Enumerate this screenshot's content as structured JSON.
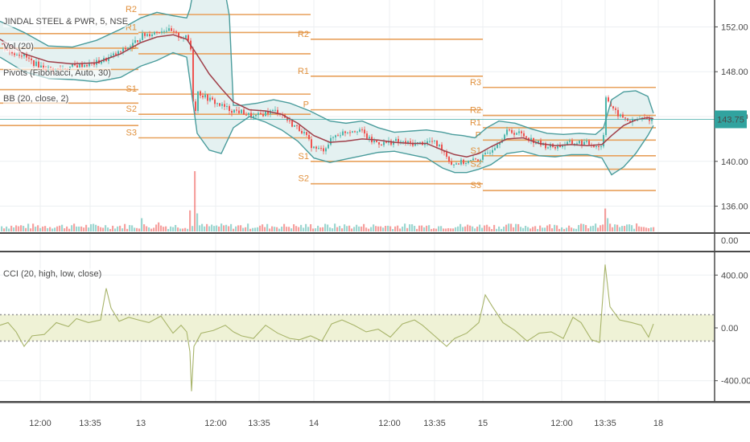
{
  "legend": {
    "symbol": "JINDAL STEEL & PWR, 5, NSE",
    "volume": "Vol (20)",
    "pivots": "Pivots (Fibonacci, Auto, 30)",
    "bb": "BB (20, close, 2)",
    "cci": "CCI (20, high, low, close)"
  },
  "colors": {
    "pivot": "#e8a15c",
    "pivot_text": "#e0903c",
    "bb_band": "#4a9c9c",
    "bb_fill": "#e4f1f1",
    "basis": "#a0404a",
    "candle_up": "#4db6ac",
    "candle_down": "#ef5350",
    "cci_line": "#a8b46a",
    "cci_band_fill": "#eff2d6",
    "price_badge": "#31a39f",
    "grid": "#eceff2",
    "axis_line": "#4a4a4a"
  },
  "chart_data": [
    {
      "type": "candlestick",
      "title": "JINDAL STEEL & PWR, 5, NSE",
      "ylim": [
        133.6,
        154.4
      ],
      "y_ticks": [
        "152.00",
        "148.00",
        "144.00",
        "140.00",
        "136.00"
      ],
      "current_price": "143.75",
      "x_ticks": [
        "12:00",
        "13:35",
        "13",
        "12:00",
        "13:35",
        "14",
        "12:00",
        "13:35",
        "15",
        "12:00",
        "13:35",
        "18"
      ],
      "price_series": [
        [
          0,
          150.5
        ],
        [
          12,
          149.7
        ],
        [
          25,
          149.6
        ],
        [
          40,
          148.8
        ],
        [
          55,
          148.3
        ],
        [
          70,
          148.2
        ],
        [
          85,
          148.4
        ],
        [
          100,
          148.6
        ],
        [
          115,
          148.7
        ],
        [
          130,
          149.1
        ],
        [
          150,
          149.8
        ],
        [
          165,
          150.5
        ],
        [
          175,
          151.2
        ],
        [
          190,
          151.5
        ],
        [
          205,
          151.8
        ],
        [
          220,
          151.2
        ],
        [
          232,
          151.0
        ],
        [
          238,
          149.5
        ],
        [
          240,
          141.5
        ],
        [
          243,
          146.3
        ],
        [
          255,
          145.7
        ],
        [
          270,
          145.1
        ],
        [
          285,
          144.6
        ],
        [
          300,
          144.4
        ],
        [
          315,
          143.9
        ],
        [
          330,
          144.4
        ],
        [
          345,
          144.5
        ],
        [
          360,
          143.4
        ],
        [
          375,
          142.7
        ],
        [
          388,
          141.2
        ],
        [
          400,
          141.0
        ],
        [
          415,
          142.3
        ],
        [
          430,
          142.7
        ],
        [
          445,
          142.9
        ],
        [
          460,
          141.8
        ],
        [
          475,
          141.6
        ],
        [
          490,
          141.8
        ],
        [
          505,
          141.6
        ],
        [
          520,
          141.6
        ],
        [
          535,
          141.8
        ],
        [
          548,
          141.2
        ],
        [
          560,
          139.8
        ],
        [
          572,
          139.9
        ],
        [
          585,
          140.0
        ],
        [
          600,
          140.4
        ],
        [
          615,
          141.5
        ],
        [
          630,
          142.7
        ],
        [
          645,
          142.5
        ],
        [
          660,
          141.9
        ],
        [
          675,
          141.4
        ],
        [
          690,
          141.3
        ],
        [
          705,
          141.6
        ],
        [
          720,
          141.7
        ],
        [
          735,
          141.5
        ],
        [
          748,
          141.3
        ],
        [
          752,
          145.9
        ],
        [
          760,
          144.6
        ],
        [
          770,
          144.0
        ],
        [
          785,
          143.5
        ],
        [
          795,
          143.8
        ],
        [
          805,
          143.8
        ],
        [
          812,
          143.75
        ]
      ],
      "bollinger_bands": {
        "upper": [
          [
            0,
            152.5
          ],
          [
            30,
            151.5
          ],
          [
            60,
            150.3
          ],
          [
            90,
            150.2
          ],
          [
            120,
            150.8
          ],
          [
            150,
            151.8
          ],
          [
            175,
            152.8
          ],
          [
            195,
            153.3
          ],
          [
            215,
            153.0
          ],
          [
            232,
            152.8
          ],
          [
            236,
            153.6
          ],
          [
            245,
            157.0
          ],
          [
            260,
            158.0
          ],
          [
            275,
            157.0
          ],
          [
            285,
            153.0
          ],
          [
            290,
            145.0
          ],
          [
            300,
            145.0
          ],
          [
            320,
            145.2
          ],
          [
            340,
            145.5
          ],
          [
            360,
            145.2
          ],
          [
            385,
            144.5
          ],
          [
            410,
            143.6
          ],
          [
            430,
            143.4
          ],
          [
            450,
            143.6
          ],
          [
            470,
            143.0
          ],
          [
            490,
            142.6
          ],
          [
            510,
            142.7
          ],
          [
            530,
            142.8
          ],
          [
            550,
            142.6
          ],
          [
            562,
            142.4
          ],
          [
            575,
            142.3
          ],
          [
            590,
            142.1
          ],
          [
            605,
            143.0
          ],
          [
            620,
            143.6
          ],
          [
            640,
            143.4
          ],
          [
            660,
            142.9
          ],
          [
            680,
            142.5
          ],
          [
            700,
            142.4
          ],
          [
            720,
            142.5
          ],
          [
            740,
            142.4
          ],
          [
            750,
            143.0
          ],
          [
            760,
            145.5
          ],
          [
            775,
            146.2
          ],
          [
            790,
            146.3
          ],
          [
            805,
            145.8
          ],
          [
            812,
            144.3
          ]
        ],
        "basis": [
          [
            0,
            150.9
          ],
          [
            30,
            149.6
          ],
          [
            60,
            148.9
          ],
          [
            90,
            148.7
          ],
          [
            120,
            148.8
          ],
          [
            150,
            149.6
          ],
          [
            175,
            150.6
          ],
          [
            195,
            151.1
          ],
          [
            215,
            151.3
          ],
          [
            232,
            150.9
          ],
          [
            245,
            149.5
          ],
          [
            260,
            147.8
          ],
          [
            275,
            146.5
          ],
          [
            290,
            145.3
          ],
          [
            310,
            144.6
          ],
          [
            330,
            144.5
          ],
          [
            350,
            144.2
          ],
          [
            370,
            143.4
          ],
          [
            390,
            142.3
          ],
          [
            410,
            141.7
          ],
          [
            430,
            141.8
          ],
          [
            450,
            142.0
          ],
          [
            470,
            141.9
          ],
          [
            490,
            141.7
          ],
          [
            510,
            141.6
          ],
          [
            530,
            141.6
          ],
          [
            550,
            141.0
          ],
          [
            565,
            140.6
          ],
          [
            580,
            140.4
          ],
          [
            595,
            140.7
          ],
          [
            610,
            141.3
          ],
          [
            630,
            142.0
          ],
          [
            650,
            142.1
          ],
          [
            670,
            141.6
          ],
          [
            690,
            141.4
          ],
          [
            710,
            141.5
          ],
          [
            730,
            141.4
          ],
          [
            748,
            141.5
          ],
          [
            760,
            142.3
          ],
          [
            775,
            143.2
          ],
          [
            790,
            143.7
          ],
          [
            805,
            143.9
          ],
          [
            812,
            143.8
          ]
        ],
        "lower": [
          [
            0,
            149.3
          ],
          [
            30,
            148.0
          ],
          [
            60,
            147.4
          ],
          [
            90,
            147.3
          ],
          [
            120,
            147.1
          ],
          [
            150,
            147.5
          ],
          [
            175,
            148.5
          ],
          [
            195,
            149.0
          ],
          [
            215,
            149.7
          ],
          [
            232,
            149.3
          ],
          [
            245,
            142.5
          ],
          [
            260,
            141.0
          ],
          [
            275,
            140.7
          ],
          [
            290,
            143.0
          ],
          [
            310,
            144.0
          ],
          [
            330,
            143.5
          ],
          [
            350,
            142.8
          ],
          [
            370,
            141.8
          ],
          [
            390,
            140.3
          ],
          [
            410,
            139.9
          ],
          [
            430,
            140.2
          ],
          [
            450,
            140.5
          ],
          [
            470,
            140.8
          ],
          [
            490,
            140.9
          ],
          [
            510,
            140.6
          ],
          [
            530,
            140.3
          ],
          [
            550,
            139.4
          ],
          [
            565,
            139.0
          ],
          [
            580,
            139.0
          ],
          [
            595,
            139.3
          ],
          [
            610,
            139.7
          ],
          [
            630,
            140.7
          ],
          [
            650,
            140.9
          ],
          [
            670,
            140.5
          ],
          [
            690,
            140.4
          ],
          [
            710,
            140.6
          ],
          [
            730,
            140.6
          ],
          [
            748,
            140.3
          ],
          [
            760,
            138.8
          ],
          [
            775,
            139.5
          ],
          [
            790,
            140.7
          ],
          [
            805,
            142.3
          ],
          [
            812,
            143.2
          ]
        ]
      },
      "pivot_sessions": [
        {
          "x_range": [
            0,
            172
          ],
          "levels": {
            "R2": 151.4,
            "R1": 150.1,
            "P": 148.2,
            "S1": 146.4,
            "S2": 145.2,
            "S3": 143.2
          }
        },
        {
          "x_range": [
            172,
            386
          ],
          "levels": {
            "R2": 153.1,
            "R1": 151.5,
            "P": 149.6,
            "S1": 146.0,
            "S2": 144.2,
            "S3": 142.1
          }
        },
        {
          "x_range": [
            386,
            600
          ],
          "levels": {
            "R2": 150.9,
            "R1": 147.6,
            "P": 144.6,
            "S1": 140.0,
            "S2": 138.0
          }
        },
        {
          "x_range": [
            600,
            815
          ],
          "levels": {
            "R3": 146.6,
            "R2": 144.1,
            "R1": 143.0,
            "P": 141.9,
            "S1": 140.5,
            "S2": 139.3,
            "S3": 137.4
          }
        }
      ]
    },
    {
      "type": "bar",
      "title": "Vol (20)",
      "y_ticks": [
        "0.00"
      ],
      "spikes": [
        [
          240,
          1.0
        ],
        [
          236,
          0.35
        ],
        [
          176,
          0.22
        ],
        [
          195,
          0.15
        ],
        [
          245,
          0.3
        ],
        [
          750,
          0.38
        ],
        [
          755,
          0.22
        ],
        [
          385,
          0.12
        ],
        [
          350,
          0.08
        ],
        [
          600,
          0.1
        ]
      ]
    },
    {
      "type": "line",
      "title": "CCI (20, high, low, close)",
      "ylim": [
        -560,
        560
      ],
      "y_ticks": [
        "400.00",
        "0.00",
        "-400.00"
      ],
      "band": [
        -100,
        100
      ],
      "series": [
        [
          0,
          20
        ],
        [
          10,
          40
        ],
        [
          20,
          -30
        ],
        [
          30,
          -140
        ],
        [
          40,
          -60
        ],
        [
          55,
          -50
        ],
        [
          70,
          40
        ],
        [
          85,
          10
        ],
        [
          95,
          70
        ],
        [
          110,
          40
        ],
        [
          125,
          60
        ],
        [
          132,
          300
        ],
        [
          138,
          150
        ],
        [
          148,
          50
        ],
        [
          160,
          80
        ],
        [
          172,
          60
        ],
        [
          185,
          40
        ],
        [
          200,
          90
        ],
        [
          215,
          -40
        ],
        [
          225,
          20
        ],
        [
          232,
          -30
        ],
        [
          236,
          -180
        ],
        [
          238,
          -480
        ],
        [
          241,
          -140
        ],
        [
          250,
          -40
        ],
        [
          265,
          -20
        ],
        [
          280,
          20
        ],
        [
          290,
          -30
        ],
        [
          300,
          -60
        ],
        [
          315,
          -80
        ],
        [
          330,
          20
        ],
        [
          345,
          -40
        ],
        [
          360,
          -80
        ],
        [
          372,
          -90
        ],
        [
          386,
          -60
        ],
        [
          400,
          -100
        ],
        [
          412,
          30
        ],
        [
          425,
          60
        ],
        [
          440,
          20
        ],
        [
          455,
          -30
        ],
        [
          470,
          -10
        ],
        [
          485,
          -70
        ],
        [
          500,
          30
        ],
        [
          515,
          60
        ],
        [
          525,
          20
        ],
        [
          540,
          -60
        ],
        [
          555,
          -140
        ],
        [
          565,
          -80
        ],
        [
          580,
          -40
        ],
        [
          595,
          40
        ],
        [
          603,
          250
        ],
        [
          612,
          160
        ],
        [
          625,
          40
        ],
        [
          640,
          -20
        ],
        [
          655,
          -100
        ],
        [
          670,
          -40
        ],
        [
          685,
          -30
        ],
        [
          700,
          -80
        ],
        [
          712,
          80
        ],
        [
          722,
          40
        ],
        [
          735,
          -90
        ],
        [
          745,
          -110
        ],
        [
          752,
          480
        ],
        [
          758,
          160
        ],
        [
          770,
          60
        ],
        [
          785,
          40
        ],
        [
          797,
          20
        ],
        [
          806,
          -70
        ],
        [
          812,
          30
        ]
      ]
    }
  ]
}
